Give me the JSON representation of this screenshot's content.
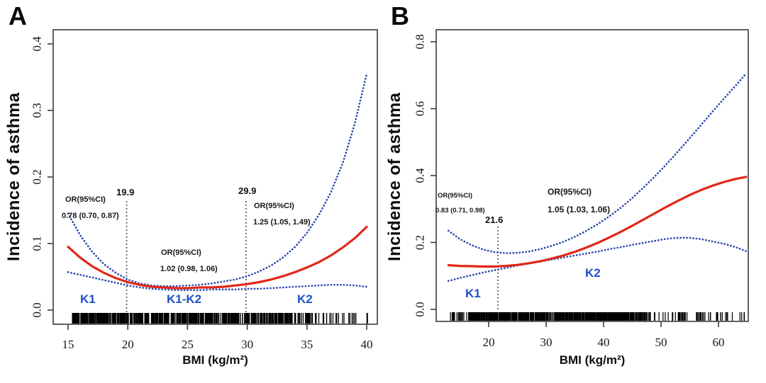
{
  "figure": {
    "background": "#ffffff"
  },
  "chart_data": [
    {
      "panel": "A",
      "type": "line",
      "xlabel": "BMI (kg/m²)",
      "ylabel": "Incidence of asthma",
      "xlim": [
        14.0,
        40.6
      ],
      "ylim": [
        -0.02,
        0.42
      ],
      "grid": false,
      "xticks": [
        "15",
        "20",
        "25",
        "30",
        "35",
        "40"
      ],
      "yticks": [
        "0.0",
        "0.1",
        "0.2",
        "0.3",
        "0.4"
      ],
      "x": [
        15,
        16,
        17,
        18,
        19,
        20,
        21,
        22,
        23,
        24,
        25,
        26,
        27,
        28,
        29,
        30,
        31,
        32,
        33,
        34,
        35,
        36,
        37,
        38,
        39,
        40
      ],
      "series": [
        {
          "name": "estimate",
          "color": "#e12717",
          "style": "solid",
          "values": [
            0.095,
            0.079,
            0.066,
            0.056,
            0.048,
            0.042,
            0.038,
            0.035,
            0.034,
            0.033,
            0.033,
            0.034,
            0.034,
            0.035,
            0.037,
            0.039,
            0.042,
            0.046,
            0.051,
            0.057,
            0.064,
            0.072,
            0.082,
            0.094,
            0.108,
            0.125
          ]
        },
        {
          "name": "upper_95ci",
          "color": "#2a47ad",
          "style": "dotted",
          "values": [
            0.145,
            0.113,
            0.088,
            0.069,
            0.056,
            0.046,
            0.04,
            0.037,
            0.036,
            0.036,
            0.037,
            0.038,
            0.04,
            0.043,
            0.046,
            0.051,
            0.058,
            0.067,
            0.079,
            0.095,
            0.116,
            0.143,
            0.177,
            0.221,
            0.28,
            0.355
          ]
        },
        {
          "name": "lower_95ci",
          "color": "#2a47ad",
          "style": "dotted",
          "values": [
            0.057,
            0.053,
            0.049,
            0.045,
            0.041,
            0.037,
            0.034,
            0.032,
            0.031,
            0.03,
            0.03,
            0.03,
            0.031,
            0.031,
            0.031,
            0.032,
            0.032,
            0.033,
            0.034,
            0.035,
            0.036,
            0.037,
            0.038,
            0.038,
            0.037,
            0.035
          ]
        }
      ],
      "knot_lines": [
        {
          "x": 19.9,
          "label": "19.9"
        },
        {
          "x": 29.9,
          "label": "29.9"
        }
      ],
      "or_annotations": [
        {
          "segment": "K1",
          "title": "OR(95%CI)",
          "value": "0.78 (0.70, 0.87)"
        },
        {
          "segment": "K1-K2",
          "title": "OR(95%CI)",
          "value": "1.02 (0.98, 1.06)"
        },
        {
          "segment": "K2",
          "title": "OR(95%CI)",
          "value": "1.25 (1.05, 1.49)"
        }
      ],
      "region_labels": [
        "K1",
        "K1-K2",
        "K2"
      ],
      "rug": {
        "segments": [
          {
            "range": [
              15.35,
              33.3
            ],
            "count": 540,
            "bias": 1
          },
          {
            "range": [
              33.3,
              40.3
            ],
            "count": 58,
            "bias": 1.45
          }
        ]
      },
      "accent_colors": {
        "estimate": "#e12717",
        "ci": "#2a47ad",
        "region_label": "#1e4fc4"
      }
    },
    {
      "panel": "B",
      "type": "line",
      "xlabel": "BMI (kg/m²)",
      "ylabel": "Incidence of asthma",
      "xlim": [
        11.0,
        65.3
      ],
      "ylim": [
        -0.035,
        0.835
      ],
      "grid": false,
      "xticks": [
        "20",
        "30",
        "40",
        "50",
        "60"
      ],
      "yticks": [
        "0.0",
        "0.2",
        "0.4",
        "0.6",
        "0.8"
      ],
      "x": [
        13,
        15,
        17,
        19,
        21,
        23,
        25,
        27,
        29,
        31,
        33,
        35,
        37,
        39,
        41,
        43,
        45,
        47,
        49,
        51,
        53,
        55,
        57,
        59,
        61,
        63,
        64.8
      ],
      "series": [
        {
          "name": "estimate",
          "color": "#e12717",
          "style": "solid",
          "values": [
            0.132,
            0.13,
            0.129,
            0.128,
            0.128,
            0.13,
            0.133,
            0.138,
            0.144,
            0.152,
            0.161,
            0.172,
            0.185,
            0.199,
            0.215,
            0.232,
            0.25,
            0.269,
            0.288,
            0.307,
            0.325,
            0.342,
            0.357,
            0.37,
            0.381,
            0.39,
            0.396
          ]
        },
        {
          "name": "upper_95ci",
          "color": "#2a47ad",
          "style": "dotted",
          "values": [
            0.235,
            0.21,
            0.192,
            0.179,
            0.171,
            0.168,
            0.169,
            0.173,
            0.18,
            0.19,
            0.202,
            0.217,
            0.235,
            0.255,
            0.278,
            0.304,
            0.333,
            0.365,
            0.399,
            0.435,
            0.473,
            0.512,
            0.552,
            0.592,
            0.631,
            0.669,
            0.705
          ]
        },
        {
          "name": "lower_95ci",
          "color": "#2a47ad",
          "style": "dotted",
          "values": [
            0.085,
            0.094,
            0.102,
            0.11,
            0.117,
            0.124,
            0.131,
            0.137,
            0.143,
            0.149,
            0.155,
            0.161,
            0.167,
            0.173,
            0.18,
            0.186,
            0.193,
            0.199,
            0.205,
            0.211,
            0.214,
            0.214,
            0.21,
            0.203,
            0.196,
            0.186,
            0.174
          ]
        }
      ],
      "knot_lines": [
        {
          "x": 21.6,
          "label": "21.6"
        }
      ],
      "or_annotations": [
        {
          "segment": "K1",
          "title": "OR(95%CI)",
          "value": "0.83 (0.71, 0.98)"
        },
        {
          "segment": "K2",
          "title": "OR(95%CI)",
          "value": "1.05 (1.03, 1.06)"
        }
      ],
      "region_labels": [
        "K1",
        "K2"
      ],
      "rug": {
        "segments": [
          {
            "range": [
              13.3,
              16.5
            ],
            "count": 18,
            "bias": 1
          },
          {
            "range": [
              16.5,
              20.0
            ],
            "count": 80,
            "bias": 1
          },
          {
            "range": [
              20.0,
              47.5
            ],
            "count": 520,
            "bias": 1
          },
          {
            "range": [
              47.5,
              64.8
            ],
            "count": 55,
            "bias": 1.35
          }
        ]
      },
      "accent_colors": {
        "estimate": "#e12717",
        "ci": "#2a47ad",
        "region_label": "#1e4fc4"
      }
    }
  ]
}
